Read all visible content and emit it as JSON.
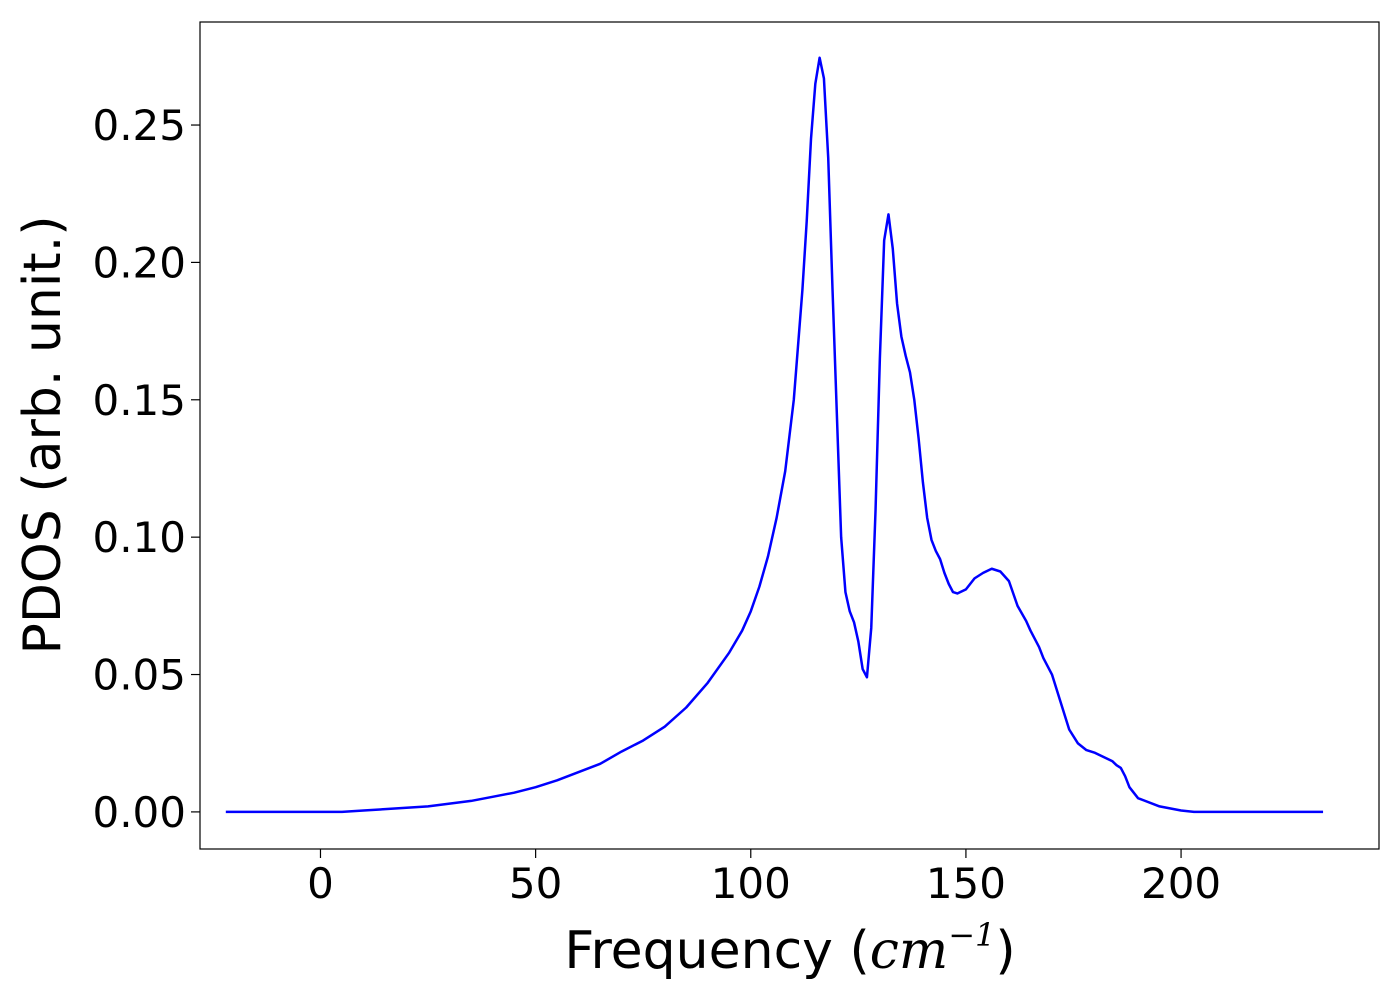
{
  "chart_data": {
    "type": "line",
    "title": "",
    "xlabel": "Frequency (cm⁻¹)",
    "xlabel_parts": {
      "prefix": "Frequency (",
      "unit": "cm",
      "exponent": "−1",
      "suffix": ")"
    },
    "ylabel": "PDOS (arb. unit.)",
    "xlim": [
      -28,
      246
    ],
    "ylim": [
      -0.0135,
      0.2875
    ],
    "xticks": [
      0,
      50,
      100,
      150,
      200
    ],
    "xtick_labels": [
      "0",
      "50",
      "100",
      "150",
      "200"
    ],
    "yticks": [
      0.0,
      0.05,
      0.1,
      0.15,
      0.2,
      0.25
    ],
    "ytick_labels": [
      "0.00",
      "0.05",
      "0.10",
      "0.15",
      "0.20",
      "0.25"
    ],
    "grid": false,
    "legend": "none",
    "series": [
      {
        "color": "#0000ff",
        "x": [
          -22,
          -10,
          0,
          5,
          10,
          15,
          20,
          25,
          30,
          35,
          40,
          45,
          50,
          55,
          60,
          65,
          70,
          75,
          80,
          85,
          90,
          95,
          98,
          100,
          102,
          104,
          106,
          108,
          110,
          112,
          113,
          114,
          115,
          116,
          117,
          118,
          119,
          120,
          121,
          122,
          123,
          124,
          125,
          126,
          127,
          128,
          129,
          130,
          131,
          132,
          133,
          134,
          135,
          136,
          137,
          138,
          139,
          140,
          141,
          142,
          143,
          144,
          145,
          146,
          147,
          148,
          150,
          152,
          154,
          156,
          158,
          160,
          162,
          164,
          165,
          166,
          167,
          168,
          170,
          172,
          174,
          176,
          178,
          180,
          182,
          184,
          185,
          186,
          187,
          188,
          190,
          195,
          200,
          203,
          206,
          209,
          212,
          214,
          216,
          218,
          220,
          225,
          233
        ],
        "y": [
          0.0,
          0.0,
          0.0,
          0.0,
          0.0005,
          0.001,
          0.0015,
          0.002,
          0.003,
          0.004,
          0.0055,
          0.007,
          0.009,
          0.0115,
          0.0145,
          0.0175,
          0.022,
          0.026,
          0.031,
          0.038,
          0.047,
          0.058,
          0.066,
          0.073,
          0.082,
          0.093,
          0.107,
          0.124,
          0.15,
          0.19,
          0.215,
          0.245,
          0.265,
          0.2745,
          0.267,
          0.238,
          0.19,
          0.145,
          0.1,
          0.08,
          0.073,
          0.069,
          0.062,
          0.052,
          0.049,
          0.067,
          0.11,
          0.165,
          0.208,
          0.2175,
          0.205,
          0.185,
          0.173,
          0.166,
          0.16,
          0.15,
          0.136,
          0.12,
          0.107,
          0.099,
          0.095,
          0.092,
          0.087,
          0.083,
          0.08,
          0.0795,
          0.081,
          0.085,
          0.087,
          0.0885,
          0.0875,
          0.084,
          0.075,
          0.0695,
          0.066,
          0.063,
          0.06,
          0.056,
          0.05,
          0.04,
          0.03,
          0.025,
          0.0225,
          0.0215,
          0.02,
          0.0185,
          0.017,
          0.016,
          0.013,
          0.009,
          0.005,
          0.002,
          0.0005,
          0.0,
          0.0,
          0.0,
          0.0,
          0.0,
          0.0,
          0.0,
          0.0,
          0.0,
          0.0
        ]
      }
    ]
  }
}
